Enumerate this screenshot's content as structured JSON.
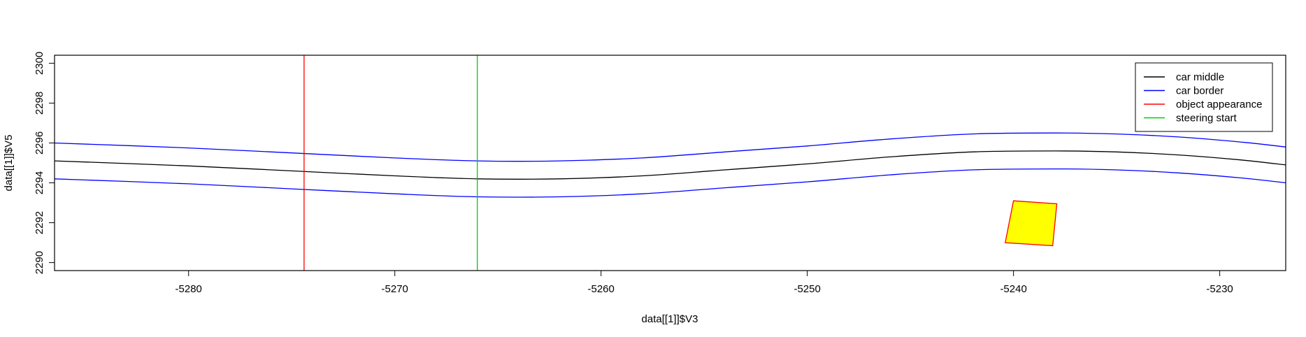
{
  "chart_data": {
    "type": "line",
    "title": "",
    "xlabel": "data[[1]]$V3",
    "ylabel": "data[[1]]$V5",
    "xlim": [
      -5286.5,
      -5226.8
    ],
    "ylim": [
      2289.6,
      2300.4
    ],
    "x_ticks": [
      -5280,
      -5270,
      -5260,
      -5250,
      -5240,
      -5230
    ],
    "y_ticks": [
      2290,
      2292,
      2294,
      2296,
      2298,
      2300
    ],
    "x_tick_labels": [
      "-5280",
      "-5270",
      "-5260",
      "-5250",
      "-5240",
      "-5230"
    ],
    "y_tick_labels": [
      "2290",
      "2292",
      "2294",
      "2296",
      "2298",
      "2300"
    ],
    "grid": false,
    "legend_position": "top-right",
    "series": [
      {
        "name": "car middle",
        "color": "#000000",
        "x": [
          -5286.5,
          -5280,
          -5275,
          -5270,
          -5266,
          -5262,
          -5258,
          -5254,
          -5250,
          -5246,
          -5242,
          -5238,
          -5235,
          -5232,
          -5229,
          -5226.8
        ],
        "y": [
          2295.1,
          2294.85,
          2294.6,
          2294.35,
          2294.2,
          2294.2,
          2294.35,
          2294.65,
          2294.95,
          2295.3,
          2295.55,
          2295.6,
          2295.55,
          2295.4,
          2295.15,
          2294.9
        ]
      },
      {
        "name": "car border",
        "color": "#0000ff",
        "x": [
          -5286.5,
          -5280,
          -5275,
          -5270,
          -5266,
          -5262,
          -5258,
          -5254,
          -5250,
          -5246,
          -5242,
          -5238,
          -5235,
          -5232,
          -5229,
          -5226.8
        ],
        "y": [
          2296.0,
          2295.75,
          2295.5,
          2295.25,
          2295.1,
          2295.1,
          2295.25,
          2295.55,
          2295.85,
          2296.2,
          2296.45,
          2296.5,
          2296.45,
          2296.3,
          2296.05,
          2295.8
        ]
      },
      {
        "name": "",
        "color": "#0000ff",
        "x": [
          -5286.5,
          -5280,
          -5275,
          -5270,
          -5266,
          -5262,
          -5258,
          -5254,
          -5250,
          -5246,
          -5242,
          -5238,
          -5235,
          -5232,
          -5229,
          -5226.8
        ],
        "y": [
          2294.2,
          2293.95,
          2293.7,
          2293.45,
          2293.3,
          2293.3,
          2293.45,
          2293.75,
          2294.05,
          2294.4,
          2294.65,
          2294.7,
          2294.65,
          2294.5,
          2294.25,
          2294.0
        ]
      }
    ],
    "vertical_lines": [
      {
        "name": "object appearance",
        "color": "#ff0000",
        "x": -5274.4
      },
      {
        "name": "steering start",
        "color": "#00cc00",
        "x": -5266.0
      }
    ],
    "object_polygon": {
      "fill": "#ffff00",
      "border": "#ff0000",
      "points": [
        [
          -5240.0,
          2293.1
        ],
        [
          -5237.9,
          2292.95
        ],
        [
          -5238.1,
          2290.85
        ],
        [
          -5240.4,
          2291.0
        ]
      ]
    },
    "legend": [
      {
        "label": "car middle",
        "color": "#000000"
      },
      {
        "label": "car border",
        "color": "#0000ff"
      },
      {
        "label": "object appearance",
        "color": "#ff0000"
      },
      {
        "label": "steering start",
        "color": "#00cc00"
      }
    ]
  }
}
